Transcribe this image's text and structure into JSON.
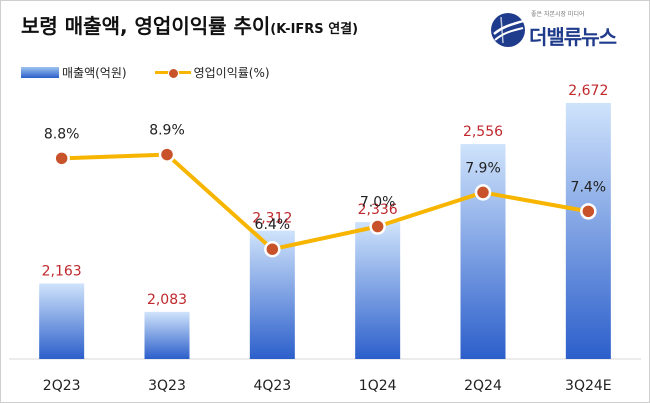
{
  "header": {
    "title": "보령 매출액, 영업이익률 추이",
    "subtitle": "(K-IFRS 연결)"
  },
  "logo": {
    "name": "더밸류뉴스",
    "tagline": "좋은 자본시장 미디어"
  },
  "legend": {
    "bar_label": "매출액(억원)",
    "line_label": "영업이익률(%)"
  },
  "colors": {
    "bar_top": "#cfe3fb",
    "bar_bottom": "#2c5fcb",
    "line": "#f7b500",
    "marker": "#c8522a",
    "bar_value_label": "#c0282d"
  },
  "chart_data": {
    "type": "bar+line",
    "categories": [
      "2Q23",
      "3Q23",
      "4Q23",
      "1Q24",
      "2Q24",
      "3Q24E"
    ],
    "series": [
      {
        "name": "매출액(억원)",
        "type": "bar",
        "values": [
          2163,
          2083,
          2312,
          2336,
          2556,
          2672
        ],
        "labels": [
          "2,163",
          "2,083",
          "2,312",
          "2,336",
          "2,556",
          "2,672"
        ]
      },
      {
        "name": "영업이익률(%)",
        "type": "line",
        "values": [
          8.8,
          8.9,
          6.4,
          7.0,
          7.9,
          7.4
        ],
        "labels": [
          "8.8%",
          "8.9%",
          "6.4%",
          "7.0%",
          "7.9%",
          "7.4%"
        ]
      }
    ],
    "bar_axis_range": [
      1950,
      2700
    ],
    "line_axis_range": [
      3.5,
      11.9
    ],
    "grid": false,
    "legend_position": "top-left"
  }
}
